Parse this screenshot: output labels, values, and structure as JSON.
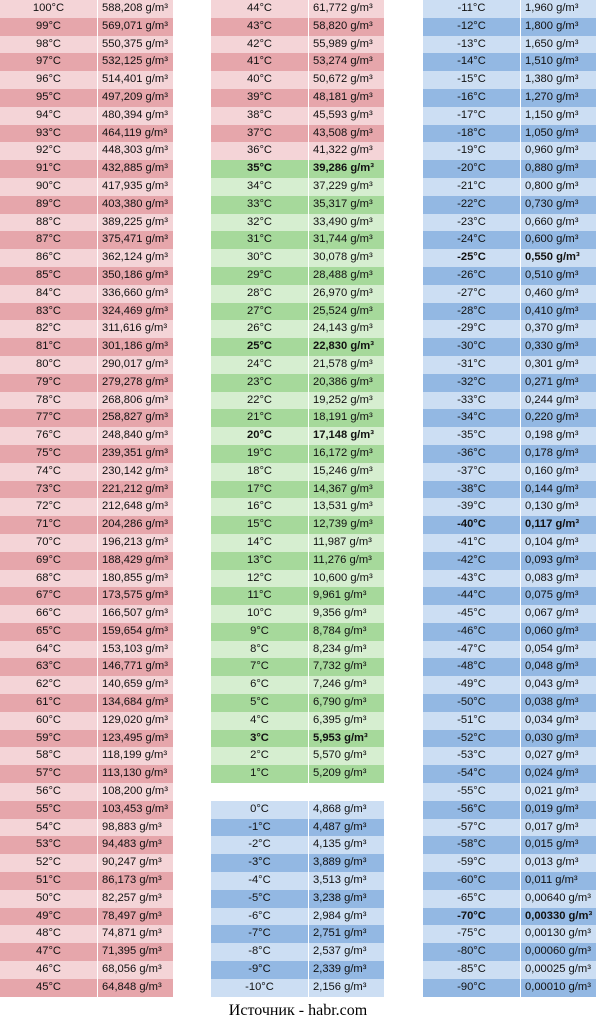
{
  "colors": {
    "hot_dark": "#e6a6ab",
    "hot_light": "#f4d4d7",
    "mild_dark": "#a6d99b",
    "mild_light": "#d6eed0",
    "cold_dark": "#93b8e3",
    "cold_light": "#ccdef3",
    "separator": "#ffffff"
  },
  "columns": [
    {
      "theme": "hot",
      "groups": [
        {
          "rows": [
            {
              "t": "100°C",
              "v": "588,208 g/m³"
            },
            {
              "t": "99°C",
              "v": "569,071 g/m³"
            },
            {
              "t": "98°C",
              "v": "550,375 g/m³"
            },
            {
              "t": "97°C",
              "v": "532,125 g/m³"
            },
            {
              "t": "96°C",
              "v": "514,401 g/m³"
            },
            {
              "t": "95°C",
              "v": "497,209 g/m³"
            },
            {
              "t": "94°C",
              "v": "480,394 g/m³"
            },
            {
              "t": "93°C",
              "v": "464,119 g/m³"
            },
            {
              "t": "92°C",
              "v": "448,303 g/m³"
            },
            {
              "t": "91°C",
              "v": "432,885 g/m³"
            },
            {
              "t": "90°C",
              "v": "417,935 g/m³"
            },
            {
              "t": "89°C",
              "v": "403,380 g/m³"
            },
            {
              "t": "88°C",
              "v": "389,225 g/m³"
            },
            {
              "t": "87°C",
              "v": "375,471 g/m³"
            },
            {
              "t": "86°C",
              "v": "362,124 g/m³"
            },
            {
              "t": "85°C",
              "v": "350,186 g/m³"
            },
            {
              "t": "84°C",
              "v": "336,660 g/m³"
            },
            {
              "t": "83°C",
              "v": "324,469 g/m³"
            },
            {
              "t": "82°C",
              "v": "311,616 g/m³"
            },
            {
              "t": "81°C",
              "v": "301,186 g/m³"
            },
            {
              "t": "80°C",
              "v": "290,017 g/m³"
            },
            {
              "t": "79°C",
              "v": "279,278 g/m³"
            },
            {
              "t": "78°C",
              "v": "268,806 g/m³"
            },
            {
              "t": "77°C",
              "v": "258,827 g/m³"
            },
            {
              "t": "76°C",
              "v": "248,840 g/m³"
            },
            {
              "t": "75°C",
              "v": "239,351 g/m³"
            },
            {
              "t": "74°C",
              "v": "230,142 g/m³"
            },
            {
              "t": "73°C",
              "v": "221,212 g/m³"
            },
            {
              "t": "72°C",
              "v": "212,648 g/m³"
            },
            {
              "t": "71°C",
              "v": "204,286 g/m³"
            },
            {
              "t": "70°C",
              "v": "196,213 g/m³"
            },
            {
              "t": "69°C",
              "v": "188,429 g/m³"
            },
            {
              "t": "68°C",
              "v": "180,855 g/m³"
            },
            {
              "t": "67°C",
              "v": "173,575 g/m³"
            },
            {
              "t": "66°C",
              "v": "166,507 g/m³"
            },
            {
              "t": "65°C",
              "v": "159,654 g/m³"
            },
            {
              "t": "64°C",
              "v": "153,103 g/m³"
            },
            {
              "t": "63°C",
              "v": "146,771 g/m³"
            },
            {
              "t": "62°C",
              "v": "140,659 g/m³"
            },
            {
              "t": "61°C",
              "v": "134,684 g/m³"
            },
            {
              "t": "60°C",
              "v": "129,020 g/m³"
            },
            {
              "t": "59°C",
              "v": "123,495 g/m³"
            },
            {
              "t": "58°C",
              "v": "118,199 g/m³"
            },
            {
              "t": "57°C",
              "v": "113,130 g/m³"
            },
            {
              "t": "56°C",
              "v": "108,200 g/m³"
            },
            {
              "t": "55°C",
              "v": "103,453 g/m³"
            },
            {
              "t": "54°C",
              "v": "98,883 g/m³"
            },
            {
              "t": "53°C",
              "v": "94,483 g/m³"
            },
            {
              "t": "52°C",
              "v": "90,247 g/m³"
            },
            {
              "t": "51°C",
              "v": "86,173 g/m³"
            },
            {
              "t": "50°C",
              "v": "82,257 g/m³"
            },
            {
              "t": "49°C",
              "v": "78,497 g/m³"
            },
            {
              "t": "48°C",
              "v": "74,871 g/m³"
            },
            {
              "t": "47°C",
              "v": "71,395 g/m³"
            },
            {
              "t": "46°C",
              "v": "68,056 g/m³"
            },
            {
              "t": "45°C",
              "v": "64,848 g/m³"
            }
          ]
        }
      ]
    },
    {
      "theme": "mixed",
      "groups": [
        {
          "rows": [
            {
              "t": "44°C",
              "v": "61,772 g/m³",
              "theme": "hot"
            },
            {
              "t": "43°C",
              "v": "58,820 g/m³",
              "theme": "hot"
            },
            {
              "t": "42°C",
              "v": "55,989 g/m³",
              "theme": "hot"
            },
            {
              "t": "41°C",
              "v": "53,274 g/m³",
              "theme": "hot"
            },
            {
              "t": "40°C",
              "v": "50,672 g/m³",
              "theme": "hot"
            },
            {
              "t": "39°C",
              "v": "48,181 g/m³",
              "theme": "hot"
            },
            {
              "t": "38°C",
              "v": "45,593 g/m³",
              "theme": "hot"
            },
            {
              "t": "37°C",
              "v": "43,508 g/m³",
              "theme": "hot"
            },
            {
              "t": "36°C",
              "v": "41,322 g/m³",
              "theme": "hot"
            },
            {
              "t": "35°C",
              "v": "39,286 g/m³",
              "theme": "mild",
              "bold": true
            },
            {
              "t": "34°C",
              "v": "37,229 g/m³",
              "theme": "mild"
            },
            {
              "t": "33°C",
              "v": "35,317 g/m³",
              "theme": "mild"
            },
            {
              "t": "32°C",
              "v": "33,490 g/m³",
              "theme": "mild"
            },
            {
              "t": "31°C",
              "v": "31,744 g/m³",
              "theme": "mild"
            },
            {
              "t": "30°C",
              "v": "30,078 g/m³",
              "theme": "mild"
            },
            {
              "t": "29°C",
              "v": "28,488 g/m³",
              "theme": "mild"
            },
            {
              "t": "28°C",
              "v": "26,970 g/m³",
              "theme": "mild"
            },
            {
              "t": "27°C",
              "v": "25,524 g/m³",
              "theme": "mild"
            },
            {
              "t": "26°C",
              "v": "24,143 g/m³",
              "theme": "mild"
            },
            {
              "t": "25°C",
              "v": "22,830 g/m³",
              "theme": "mild",
              "bold": true
            },
            {
              "t": "24°C",
              "v": "21,578 g/m³",
              "theme": "mild"
            },
            {
              "t": "23°C",
              "v": "20,386 g/m³",
              "theme": "mild"
            },
            {
              "t": "22°C",
              "v": "19,252 g/m³",
              "theme": "mild"
            },
            {
              "t": "21°C",
              "v": "18,191 g/m³",
              "theme": "mild"
            },
            {
              "t": "20°C",
              "v": "17,148 g/m³",
              "theme": "mild",
              "bold": true
            },
            {
              "t": "19°C",
              "v": "16,172 g/m³",
              "theme": "mild"
            },
            {
              "t": "18°C",
              "v": "15,246 g/m³",
              "theme": "mild"
            },
            {
              "t": "17°C",
              "v": "14,367 g/m³",
              "theme": "mild"
            },
            {
              "t": "16°C",
              "v": "13,531 g/m³",
              "theme": "mild"
            },
            {
              "t": "15°C",
              "v": "12,739 g/m³",
              "theme": "mild"
            },
            {
              "t": "14°C",
              "v": "11,987 g/m³",
              "theme": "mild"
            },
            {
              "t": "13°C",
              "v": "11,276 g/m³",
              "theme": "mild"
            },
            {
              "t": "12°C",
              "v": "10,600 g/m³",
              "theme": "mild"
            },
            {
              "t": "11°C",
              "v": "9,961 g/m³",
              "theme": "mild"
            },
            {
              "t": "10°C",
              "v": "9,356 g/m³",
              "theme": "mild"
            },
            {
              "t": "9°C",
              "v": "8,784 g/m³",
              "theme": "mild"
            },
            {
              "t": "8°C",
              "v": "8,234 g/m³",
              "theme": "mild"
            },
            {
              "t": "7°C",
              "v": "7,732 g/m³",
              "theme": "mild"
            },
            {
              "t": "6°C",
              "v": "7,246 g/m³",
              "theme": "mild"
            },
            {
              "t": "5°C",
              "v": "6,790 g/m³",
              "theme": "mild"
            },
            {
              "t": "4°C",
              "v": "6,395 g/m³",
              "theme": "mild"
            },
            {
              "t": "3°C",
              "v": "5,953 g/m³",
              "theme": "mild",
              "bold": true
            },
            {
              "t": "2°C",
              "v": "5,570 g/m³",
              "theme": "mild"
            },
            {
              "t": "1°C",
              "v": "5,209 g/m³",
              "theme": "mild"
            }
          ]
        },
        {
          "rows": [
            {
              "t": "0°C",
              "v": "4,868 g/m³",
              "theme": "cold"
            },
            {
              "t": "-1°C",
              "v": "4,487 g/m³",
              "theme": "cold"
            },
            {
              "t": "-2°C",
              "v": "4,135 g/m³",
              "theme": "cold"
            },
            {
              "t": "-3°C",
              "v": "3,889 g/m³",
              "theme": "cold"
            },
            {
              "t": "-4°C",
              "v": "3,513 g/m³",
              "theme": "cold"
            },
            {
              "t": "-5°C",
              "v": "3,238 g/m³",
              "theme": "cold"
            },
            {
              "t": "-6°C",
              "v": "2,984 g/m³",
              "theme": "cold"
            },
            {
              "t": "-7°C",
              "v": "2,751 g/m³",
              "theme": "cold"
            },
            {
              "t": "-8°C",
              "v": "2,537 g/m³",
              "theme": "cold"
            },
            {
              "t": "-9°C",
              "v": "2,339 g/m³",
              "theme": "cold"
            },
            {
              "t": "-10°C",
              "v": "2,156 g/m³",
              "theme": "cold"
            }
          ]
        }
      ]
    },
    {
      "theme": "cold",
      "groups": [
        {
          "rows": [
            {
              "t": "-11°C",
              "v": "1,960 g/m³"
            },
            {
              "t": "-12°C",
              "v": "1,800 g/m³"
            },
            {
              "t": "-13°C",
              "v": "1,650 g/m³"
            },
            {
              "t": "-14°C",
              "v": "1,510 g/m³"
            },
            {
              "t": "-15°C",
              "v": "1,380 g/m³"
            },
            {
              "t": "-16°C",
              "v": "1,270 g/m³"
            },
            {
              "t": "-17°C",
              "v": "1,150 g/m³"
            },
            {
              "t": "-18°C",
              "v": "1,050 g/m³"
            },
            {
              "t": "-19°C",
              "v": "0,960 g/m³"
            },
            {
              "t": "-20°C",
              "v": "0,880 g/m³"
            },
            {
              "t": "-21°C",
              "v": "0,800 g/m³"
            },
            {
              "t": "-22°C",
              "v": "0,730 g/m³"
            },
            {
              "t": "-23°C",
              "v": "0,660 g/m³"
            },
            {
              "t": "-24°C",
              "v": "0,600 g/m³"
            },
            {
              "t": "-25°C",
              "v": "0,550 g/m³",
              "bold": true
            },
            {
              "t": "-26°C",
              "v": "0,510 g/m³"
            },
            {
              "t": "-27°C",
              "v": "0,460 g/m³"
            },
            {
              "t": "-28°C",
              "v": "0,410 g/m³"
            },
            {
              "t": "-29°C",
              "v": "0,370 g/m³"
            },
            {
              "t": "-30°C",
              "v": "0,330 g/m³"
            },
            {
              "t": "-31°C",
              "v": "0,301 g/m³"
            },
            {
              "t": "-32°C",
              "v": "0,271 g/m³"
            },
            {
              "t": "-33°C",
              "v": "0,244 g/m³"
            },
            {
              "t": "-34°C",
              "v": "0,220 g/m³"
            },
            {
              "t": "-35°C",
              "v": "0,198 g/m³"
            },
            {
              "t": "-36°C",
              "v": "0,178 g/m³"
            },
            {
              "t": "-37°C",
              "v": "0,160 g/m³"
            },
            {
              "t": "-38°C",
              "v": "0,144 g/m³"
            },
            {
              "t": "-39°C",
              "v": "0,130 g/m³"
            },
            {
              "t": "-40°C",
              "v": "0,117 g/m³",
              "bold": true
            },
            {
              "t": "-41°C",
              "v": "0,104 g/m³"
            },
            {
              "t": "-42°C",
              "v": "0,093 g/m³"
            },
            {
              "t": "-43°C",
              "v": "0,083 g/m³"
            },
            {
              "t": "-44°C",
              "v": "0,075 g/m³"
            },
            {
              "t": "-45°C",
              "v": "0,067 g/m³"
            },
            {
              "t": "-46°C",
              "v": "0,060 g/m³"
            },
            {
              "t": "-47°C",
              "v": "0,054 g/m³"
            },
            {
              "t": "-48°C",
              "v": "0,048 g/m³"
            },
            {
              "t": "-49°C",
              "v": "0,043 g/m³"
            },
            {
              "t": "-50°C",
              "v": "0,038 g/m³"
            },
            {
              "t": "-51°C",
              "v": "0,034 g/m³"
            },
            {
              "t": "-52°C",
              "v": "0,030 g/m³"
            },
            {
              "t": "-53°C",
              "v": "0,027 g/m³"
            },
            {
              "t": "-54°C",
              "v": "0,024 g/m³"
            },
            {
              "t": "-55°C",
              "v": "0,021 g/m³"
            },
            {
              "t": "-56°C",
              "v": "0,019 g/m³"
            },
            {
              "t": "-57°C",
              "v": "0,017 g/m³"
            },
            {
              "t": "-58°C",
              "v": "0,015 g/m³"
            },
            {
              "t": "-59°C",
              "v": "0,013 g/m³"
            },
            {
              "t": "-60°C",
              "v": "0,011 g/m³"
            },
            {
              "t": "-65°C",
              "v": "0,00640 g/m³"
            },
            {
              "t": "-70°C",
              "v": "0,00330 g/m³",
              "bold": true
            },
            {
              "t": "-75°C",
              "v": "0,00130 g/m³"
            },
            {
              "t": "-80°C",
              "v": "0,00060 g/m³"
            },
            {
              "t": "-85°C",
              "v": "0,00025 g/m³"
            },
            {
              "t": "-90°C",
              "v": "0,00010 g/m³"
            }
          ]
        }
      ]
    }
  ],
  "caption": "Источник - habr.com"
}
